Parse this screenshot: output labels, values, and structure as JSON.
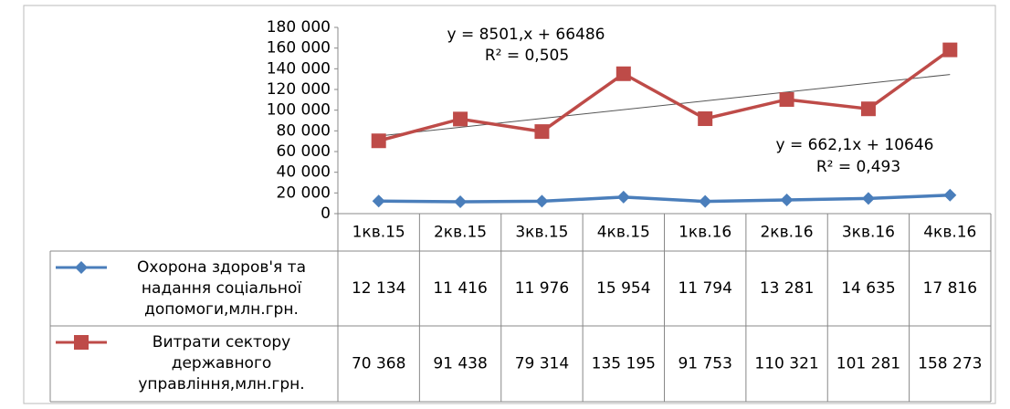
{
  "chart_data": {
    "type": "line",
    "categories": [
      "1кв.15",
      "2кв.15",
      "3кв.15",
      "4кв.15",
      "1кв.16",
      "2кв.16",
      "3кв.16",
      "4кв.16"
    ],
    "series": [
      {
        "name": "Охорона здоров'я та надання соціальної допомоги,млн.грн.",
        "color": "#4a7ebb",
        "marker": "diamond",
        "values": [
          12134,
          11416,
          11976,
          15954,
          11794,
          13281,
          14635,
          17816
        ],
        "value_labels": [
          "12 134",
          "11 416",
          "11 976",
          "15 954",
          "11 794",
          "13 281",
          "14 635",
          "17 816"
        ]
      },
      {
        "name": "Витрати сектору державного управління,млн.грн.",
        "color": "#be4b48",
        "marker": "square",
        "trendline": true,
        "values": [
          70368,
          91438,
          79314,
          135195,
          91753,
          110321,
          101281,
          158273
        ],
        "value_labels": [
          "70 368",
          "91 438",
          "79 314",
          "135 195",
          "91 753",
          "110 321",
          "101 281",
          "158 273"
        ]
      }
    ],
    "annotations": [
      "y = 8501,x + 66486",
      "R² = 0,505",
      "y = 662,1x + 10646",
      "R² = 0,493"
    ],
    "ylim": [
      0,
      180000
    ],
    "yticks": [
      0,
      {
        "value": 20000,
        "label": "20 000"
      },
      {
        "value": 40000,
        "label": "40 000"
      },
      {
        "value": 60000,
        "label": "60 000"
      },
      {
        "value": 80000,
        "label": "80 000"
      },
      {
        "value": 100000,
        "label": "100 000"
      },
      {
        "value": 120000,
        "label": "120 000"
      },
      {
        "value": 140000,
        "label": "140 000"
      },
      {
        "value": 160000,
        "label": "160 000"
      },
      {
        "value": 180000,
        "label": "180 000"
      }
    ]
  }
}
